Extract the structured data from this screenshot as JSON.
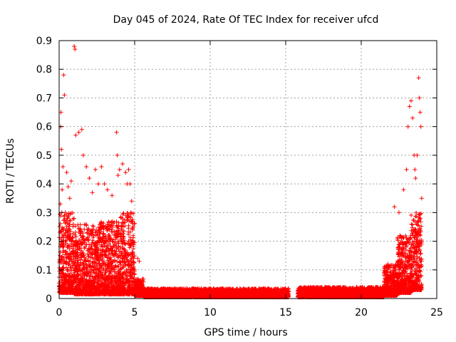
{
  "chart_data": {
    "type": "scatter",
    "title": "Day 045 of 2024, Rate Of TEC Index for receiver ufcd",
    "xlabel": "GPS time / hours",
    "ylabel": "ROTI / TECUs",
    "xlim": [
      0,
      25
    ],
    "ylim": [
      0,
      0.9
    ],
    "xticks": [
      0,
      5,
      10,
      15,
      20,
      25
    ],
    "yticks": [
      0,
      0.1,
      0.2,
      0.3,
      0.4,
      0.5,
      0.6,
      0.7,
      0.8,
      0.9
    ],
    "grid": true,
    "marker": "+",
    "color": "#ff0000",
    "series": [
      {
        "name": "ROTI",
        "points": [
          [
            0.05,
            0.13
          ],
          [
            0.08,
            0.33
          ],
          [
            0.1,
            0.6
          ],
          [
            0.12,
            0.65
          ],
          [
            0.15,
            0.52
          ],
          [
            0.18,
            0.3
          ],
          [
            0.2,
            0.38
          ],
          [
            0.25,
            0.46
          ],
          [
            0.3,
            0.78
          ],
          [
            0.35,
            0.71
          ],
          [
            0.4,
            0.3
          ],
          [
            0.5,
            0.44
          ],
          [
            0.6,
            0.39
          ],
          [
            0.7,
            0.35
          ],
          [
            0.8,
            0.41
          ],
          [
            1.0,
            0.88
          ],
          [
            1.05,
            0.87
          ],
          [
            1.1,
            0.57
          ],
          [
            1.3,
            0.58
          ],
          [
            1.5,
            0.59
          ],
          [
            1.6,
            0.5
          ],
          [
            1.8,
            0.46
          ],
          [
            2.0,
            0.42
          ],
          [
            2.2,
            0.37
          ],
          [
            2.4,
            0.45
          ],
          [
            2.6,
            0.4
          ],
          [
            2.8,
            0.46
          ],
          [
            3.0,
            0.4
          ],
          [
            3.2,
            0.38
          ],
          [
            3.5,
            0.36
          ],
          [
            3.8,
            0.58
          ],
          [
            3.85,
            0.5
          ],
          [
            3.9,
            0.43
          ],
          [
            4.0,
            0.45
          ],
          [
            4.2,
            0.47
          ],
          [
            4.4,
            0.44
          ],
          [
            4.5,
            0.4
          ],
          [
            4.6,
            0.45
          ],
          [
            4.7,
            0.4
          ],
          [
            4.8,
            0.34
          ],
          [
            4.9,
            0.25
          ],
          [
            5.2,
            0.14
          ],
          [
            5.3,
            0.13
          ],
          [
            5.5,
            0.05
          ],
          [
            22.2,
            0.32
          ],
          [
            22.5,
            0.3
          ],
          [
            22.8,
            0.38
          ],
          [
            23.0,
            0.45
          ],
          [
            23.1,
            0.6
          ],
          [
            23.2,
            0.67
          ],
          [
            23.3,
            0.69
          ],
          [
            23.4,
            0.63
          ],
          [
            23.5,
            0.5
          ],
          [
            23.55,
            0.45
          ],
          [
            23.6,
            0.42
          ],
          [
            23.7,
            0.5
          ],
          [
            23.8,
            0.77
          ],
          [
            23.85,
            0.7
          ],
          [
            23.9,
            0.65
          ],
          [
            23.95,
            0.6
          ],
          [
            24.0,
            0.35
          ]
        ],
        "bands": [
          {
            "x0": 0.0,
            "x1": 1.0,
            "ymin": 0.02,
            "ymax": 0.3
          },
          {
            "x0": 1.0,
            "x1": 2.5,
            "ymin": 0.015,
            "ymax": 0.26
          },
          {
            "x0": 2.5,
            "x1": 4.0,
            "ymin": 0.015,
            "ymax": 0.27
          },
          {
            "x0": 4.0,
            "x1": 5.0,
            "ymin": 0.015,
            "ymax": 0.3
          },
          {
            "x0": 5.0,
            "x1": 5.6,
            "ymin": 0.01,
            "ymax": 0.07
          },
          {
            "x0": 5.6,
            "x1": 15.2,
            "ymin": 0.005,
            "ymax": 0.035
          },
          {
            "x0": 15.8,
            "x1": 21.5,
            "ymin": 0.005,
            "ymax": 0.04
          },
          {
            "x0": 21.5,
            "x1": 22.4,
            "ymin": 0.01,
            "ymax": 0.12
          },
          {
            "x0": 22.4,
            "x1": 23.3,
            "ymin": 0.02,
            "ymax": 0.22
          },
          {
            "x0": 23.3,
            "x1": 24.0,
            "ymin": 0.03,
            "ymax": 0.3
          }
        ]
      }
    ]
  }
}
